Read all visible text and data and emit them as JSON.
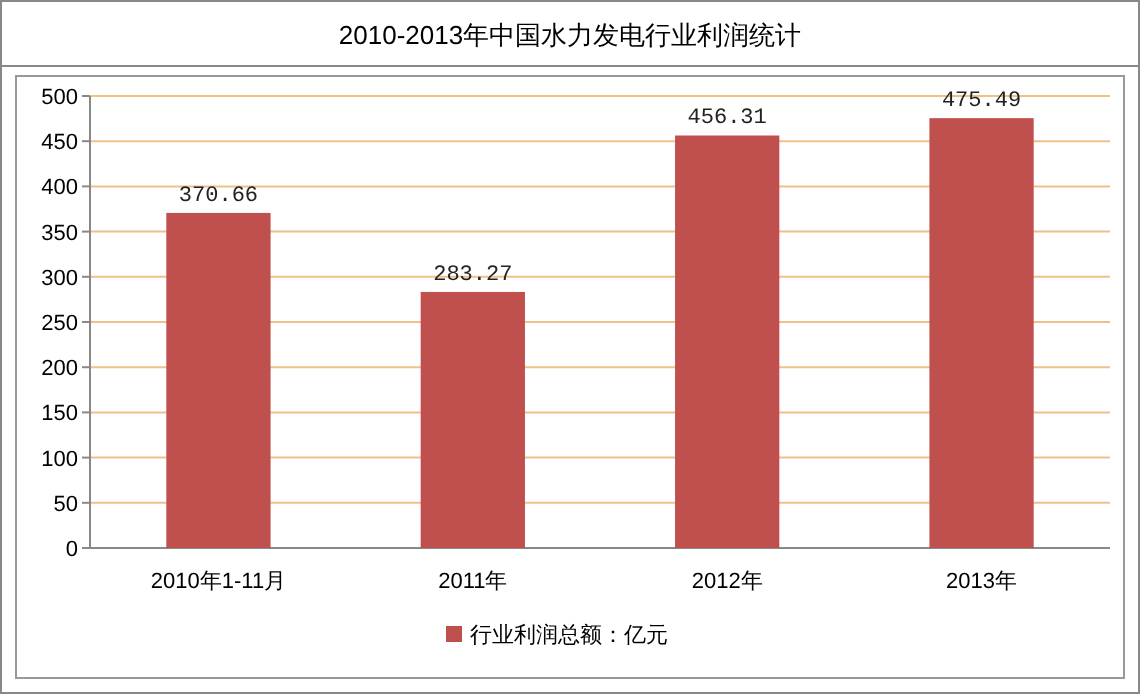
{
  "chart_data": {
    "type": "bar",
    "title": "2010-2013年中国水力发电行业利润统计",
    "categories": [
      "2010年1-11月",
      "2011年",
      "2012年",
      "2013年"
    ],
    "series": [
      {
        "name": "行业利润总额：亿元",
        "color": "#c0504d",
        "values": [
          370.66,
          283.27,
          456.31,
          475.49
        ]
      }
    ],
    "ylim": [
      0,
      500
    ],
    "yticks": [
      0,
      50,
      100,
      150,
      200,
      250,
      300,
      350,
      400,
      450,
      500
    ],
    "grid": "y",
    "legend": "bottom",
    "data_labels": true
  }
}
